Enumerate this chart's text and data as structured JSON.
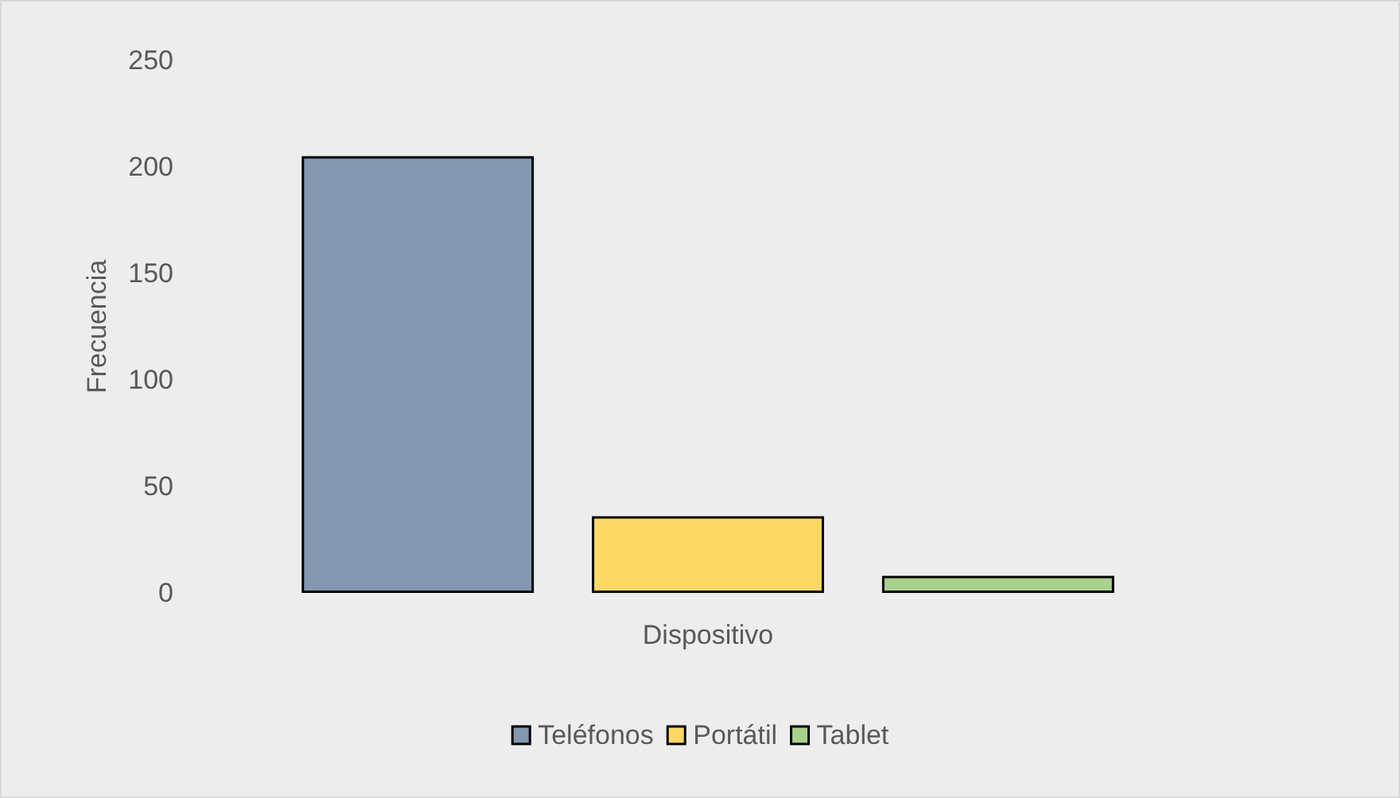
{
  "chart_data": {
    "type": "bar",
    "ylabel": "Frecuencia",
    "xlabel": "Dispositivo",
    "categories": [
      null
    ],
    "series": [
      {
        "name": "Teléfonos",
        "color": "#8497b0",
        "values": [
          205
        ]
      },
      {
        "name": "Portátil",
        "color": "#ffd966",
        "values": [
          36
        ]
      },
      {
        "name": "Tablet",
        "color": "#a9d18e",
        "values": [
          8
        ]
      }
    ],
    "ylim": [
      0,
      250
    ],
    "yticks": [
      0,
      50,
      100,
      150,
      200,
      250
    ],
    "grid": false,
    "legend": "bottom"
  }
}
